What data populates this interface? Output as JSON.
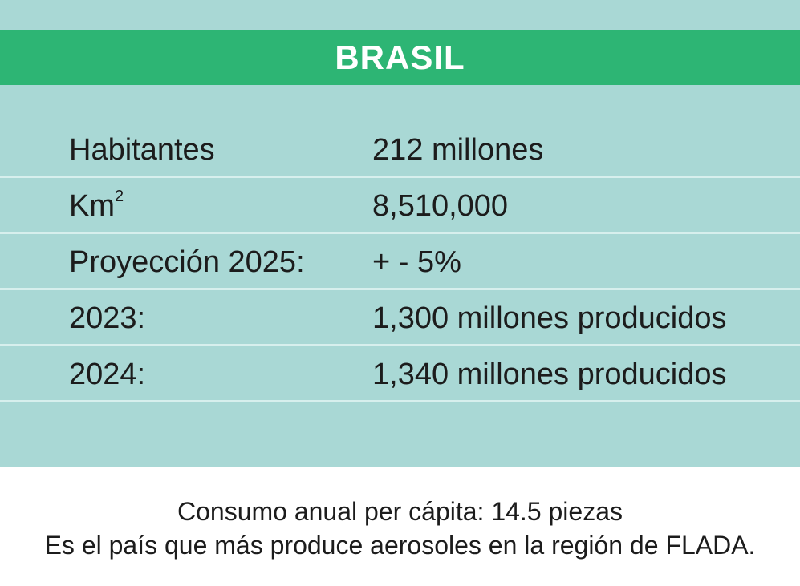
{
  "header": {
    "title": "BRASIL"
  },
  "rows": [
    {
      "label": "Habitantes",
      "value": "212 millones"
    },
    {
      "label": "Km",
      "label_sup": "2",
      "value": "8,510,000"
    },
    {
      "label": "Proyección 2025:",
      "value": "+ - 5%"
    },
    {
      "label": "2023:",
      "value": "1,300 millones producidos"
    },
    {
      "label": "2024:",
      "value": "1,340 millones producidos"
    }
  ],
  "footer": {
    "line1": "Consumo anual per cápita: 14.5 piezas",
    "line2": "Es el país que más produce aerosoles en la región de FLADA."
  },
  "colors": {
    "card_background": "#a9d8d5",
    "header_background": "#2db574",
    "row_divider": "#d7efed"
  }
}
